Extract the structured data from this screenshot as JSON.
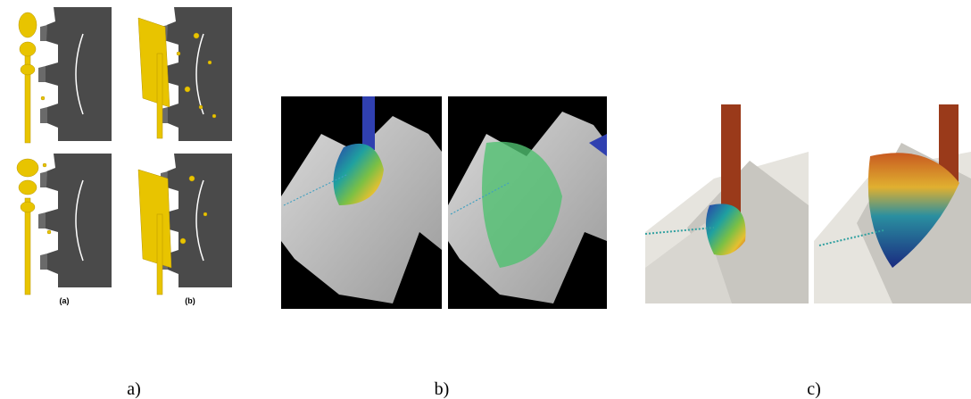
{
  "panels": [
    {
      "label": "a)",
      "sublabels": [
        "(a)",
        "(b)"
      ]
    },
    {
      "label": "b)"
    },
    {
      "label": "c)"
    }
  ]
}
